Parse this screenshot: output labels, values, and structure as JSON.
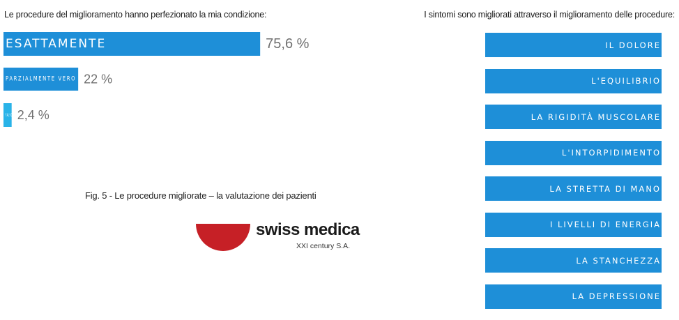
{
  "left_heading": "Le procedure del miglioramento hanno perfezionato la mia condizione:",
  "right_heading": "I sintomi sono migliorati attraverso il miglioramento delle procedure:",
  "chart_data": {
    "type": "bar",
    "orientation": "horizontal",
    "title": "Le procedure del miglioramento hanno perfezionato la mia condizione:",
    "categories": [
      "ESATTAMENTE",
      "PARZIALMENTE VERO",
      "FALSO"
    ],
    "values": [
      75.6,
      22,
      2.4
    ],
    "value_labels": [
      "75,6 %",
      "22 %",
      "2,4 %"
    ],
    "unit": "%",
    "xlim": [
      0,
      100
    ],
    "colors": [
      "#1e8fd8",
      "#1e8fd8",
      "#29b3e8"
    ],
    "grid": false,
    "legend": "none"
  },
  "symptoms": [
    "IL DOLORE",
    "L'EQUILIBRIO",
    "LA RIGIDITÀ MUSCOLARE",
    "L'INTORPIDIMENTO",
    "LA STRETTA DI MANO",
    "I LIVELLI DI ENERGIA",
    "LA STANCHEZZA",
    "LA DEPRESSIONE"
  ],
  "caption": "Fig. 5 - Le procedure migliorate – la valutazione dei pazienti",
  "logo": {
    "name": "swiss medica",
    "subtitle": "XXI century S.A.",
    "mark_color": "#c62026"
  },
  "colors": {
    "accent": "#1e8fd8",
    "accent_light": "#29b3e8",
    "value_text": "#707070"
  }
}
